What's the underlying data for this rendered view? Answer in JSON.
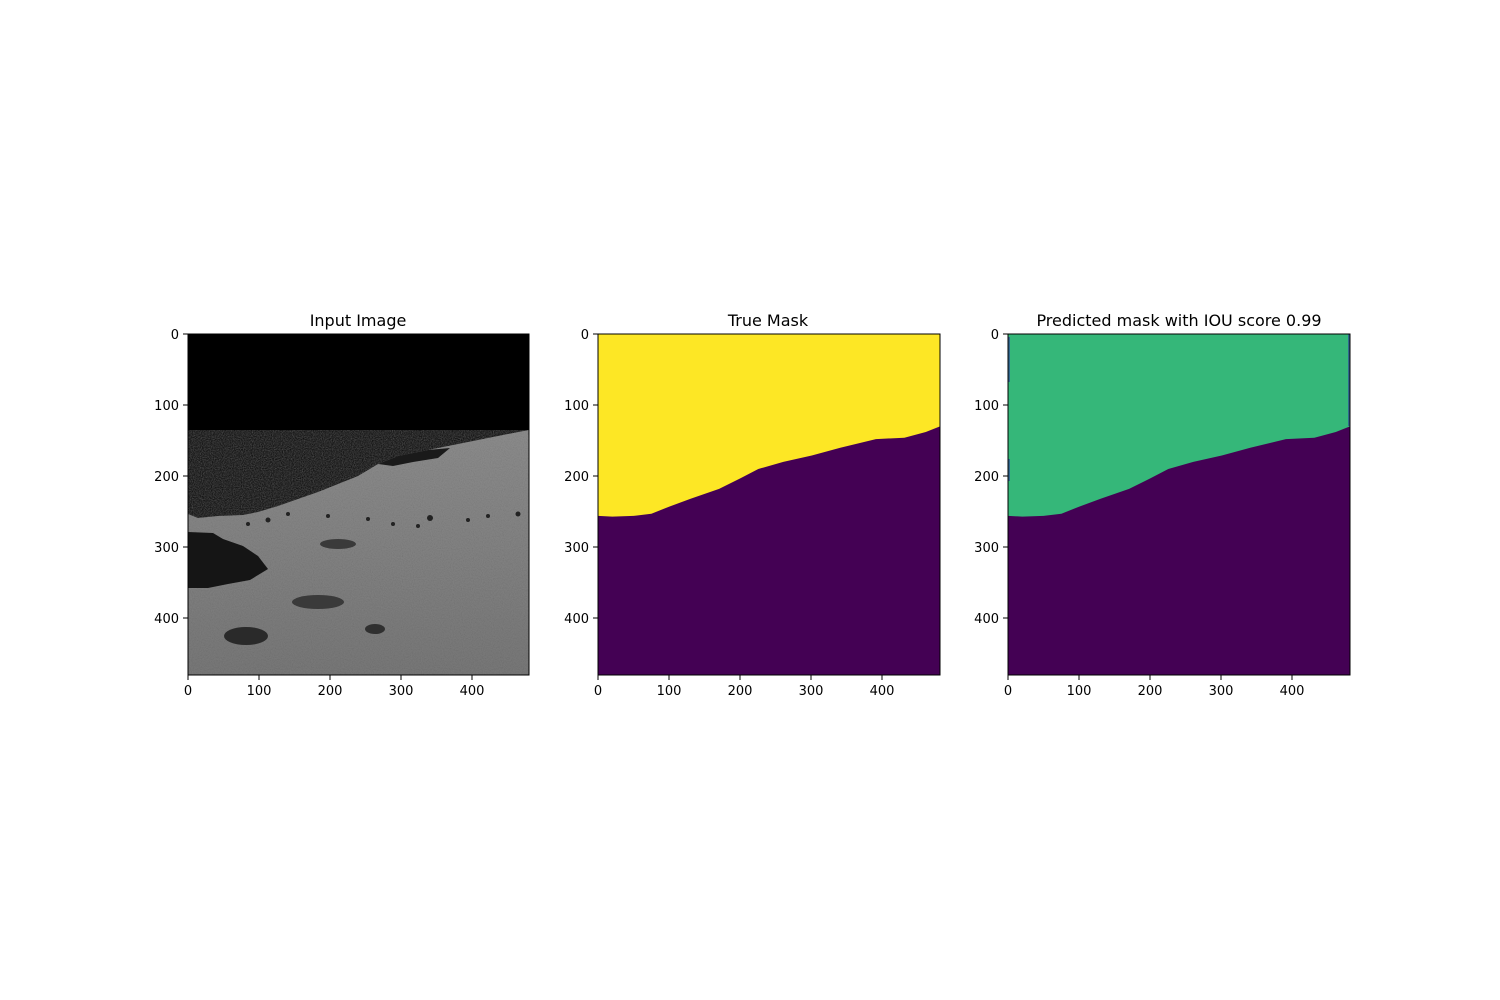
{
  "chart_data": [
    {
      "type": "image",
      "title": "Input Image",
      "content": "grayscale lunar surface photo, black sky above a sloping gray horizon",
      "colors": {
        "sky": "#000000",
        "ground_light": "#9a9a9a",
        "ground_dark": "#3a3a3a"
      },
      "xlim": [
        0,
        480
      ],
      "ylim": [
        480,
        0
      ],
      "xticks": [
        "0",
        "100",
        "200",
        "300",
        "400"
      ],
      "yticks": [
        "0",
        "100",
        "200",
        "300",
        "400"
      ],
      "xlabel": "",
      "ylabel": ""
    },
    {
      "type": "heatmap",
      "title": "True Mask",
      "classes": [
        {
          "name": "sky",
          "color": "#fde725"
        },
        {
          "name": "ground",
          "color": "#440154"
        }
      ],
      "boundary_x": [
        0,
        20,
        50,
        75,
        100,
        130,
        170,
        200,
        225,
        260,
        300,
        340,
        390,
        430,
        460,
        480
      ],
      "boundary_y": [
        256,
        257,
        256,
        253,
        243,
        232,
        218,
        203,
        190,
        180,
        171,
        160,
        148,
        146,
        138,
        130
      ],
      "xlim": [
        0,
        480
      ],
      "ylim": [
        480,
        0
      ],
      "xticks": [
        "0",
        "100",
        "200",
        "300",
        "400"
      ],
      "yticks": [
        "0",
        "100",
        "200",
        "300",
        "400"
      ],
      "xlabel": "",
      "ylabel": ""
    },
    {
      "type": "heatmap",
      "title": "Predicted mask with IOU score 0.99",
      "classes": [
        {
          "name": "sky",
          "color": "#35b779"
        },
        {
          "name": "ground",
          "color": "#440154"
        },
        {
          "name": "edge-artifact",
          "color": "#31688e"
        }
      ],
      "boundary_x": [
        0,
        20,
        50,
        75,
        100,
        130,
        170,
        200,
        225,
        260,
        300,
        340,
        390,
        430,
        460,
        480
      ],
      "boundary_y": [
        256,
        257,
        256,
        253,
        243,
        232,
        218,
        203,
        190,
        180,
        171,
        160,
        148,
        146,
        138,
        130
      ],
      "xlim": [
        0,
        480
      ],
      "ylim": [
        480,
        0
      ],
      "xticks": [
        "0",
        "100",
        "200",
        "300",
        "400"
      ],
      "yticks": [
        "0",
        "100",
        "200",
        "300",
        "400"
      ],
      "xlabel": "",
      "ylabel": ""
    }
  ]
}
